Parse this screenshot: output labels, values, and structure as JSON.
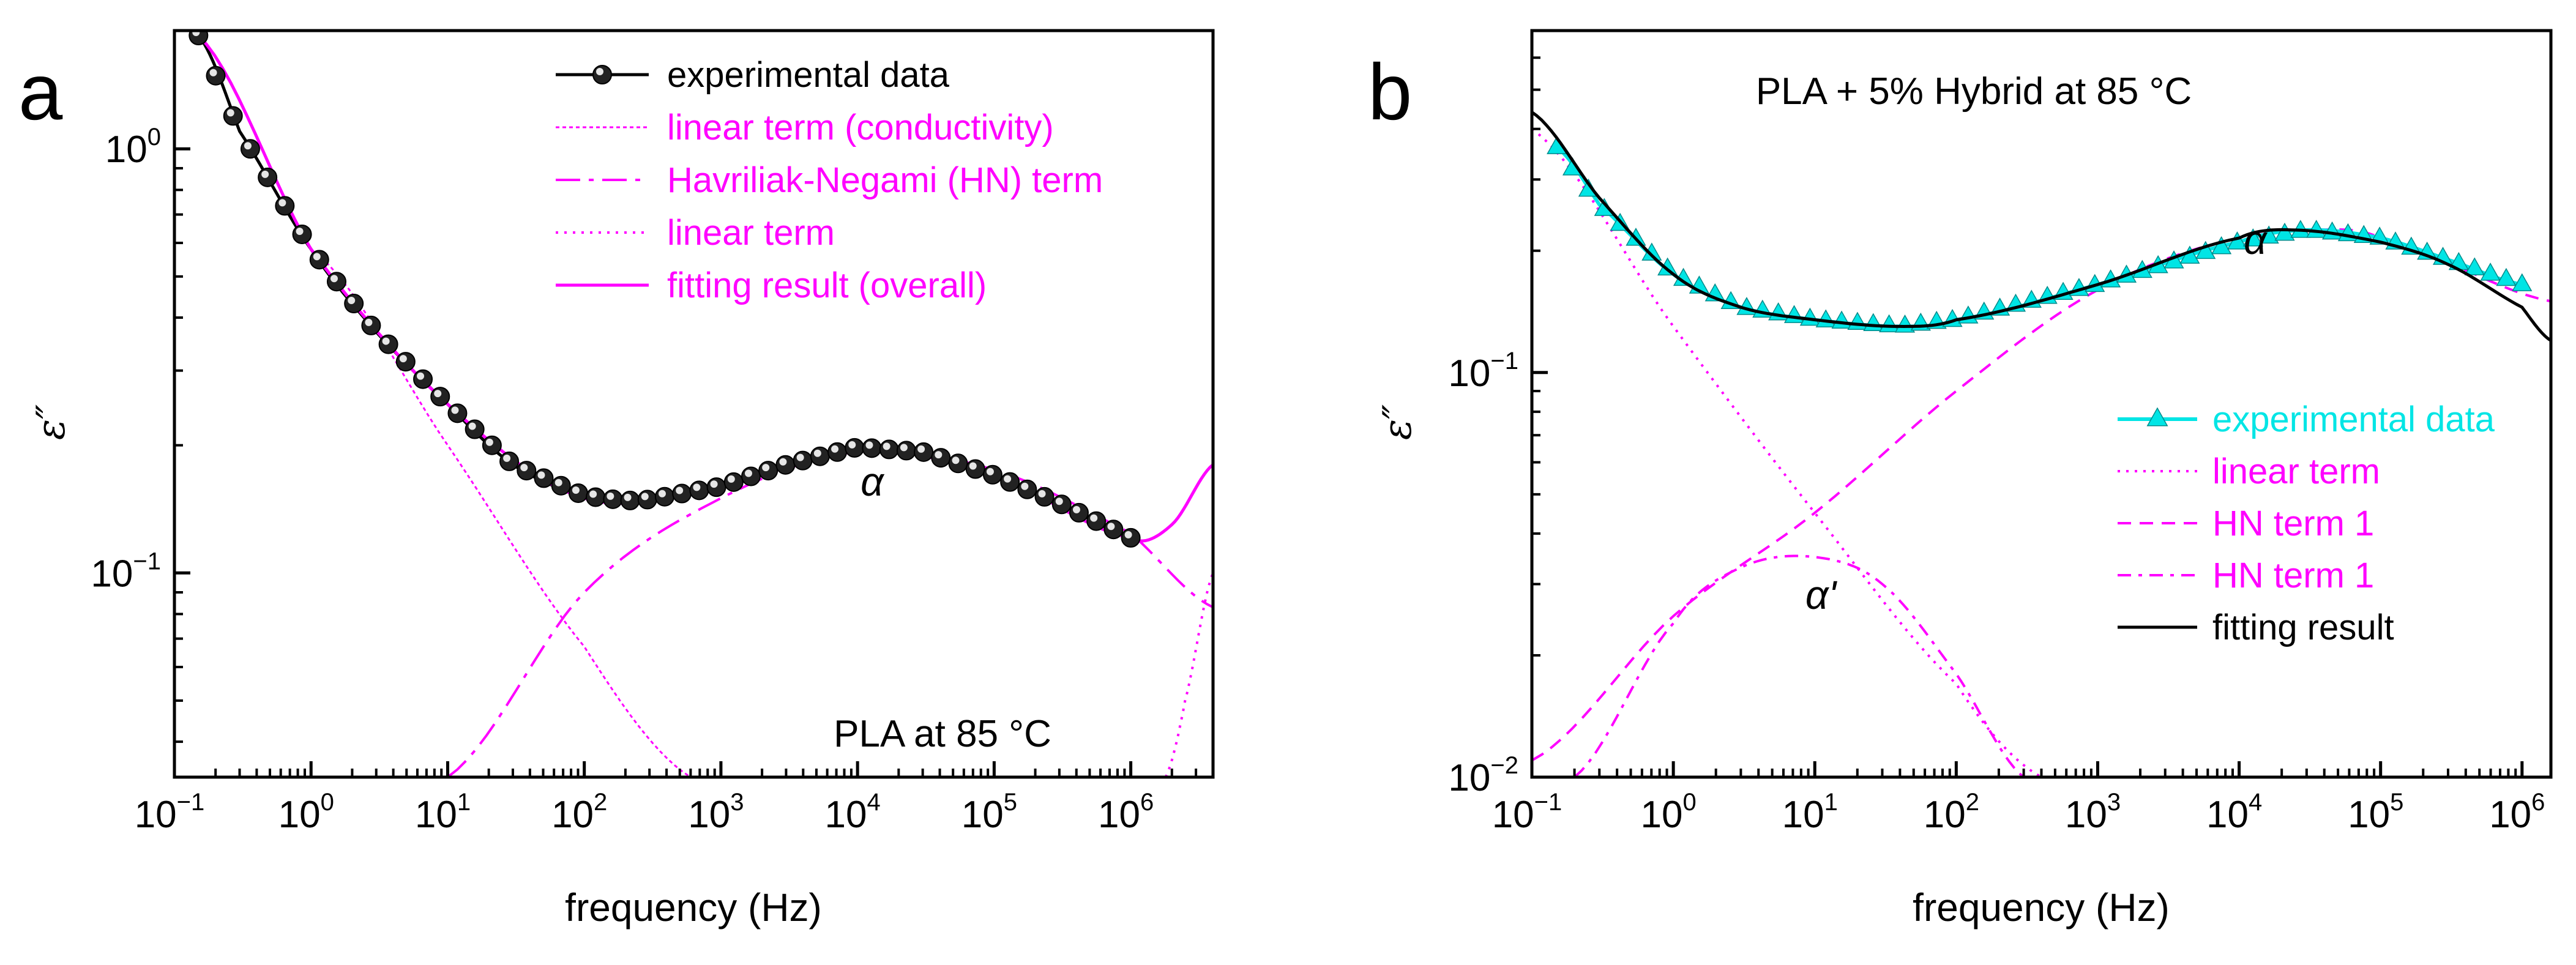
{
  "chart_data": [
    {
      "type": "line",
      "panel_label": "a",
      "xlabel": "frequency (Hz)",
      "ylabel": "ε″",
      "xscale": "log",
      "yscale": "log",
      "xlim": [
        0.1,
        4000000
      ],
      "ylim": [
        0.033,
        1.9
      ],
      "x_ticks": [
        "10^-1",
        "10^0",
        "10^1",
        "10^2",
        "10^3",
        "10^4",
        "10^5",
        "10^6"
      ],
      "y_ticks": [
        "10^-1",
        "10^0"
      ],
      "annotation": "PLA  at 85 °C",
      "peak_label": "α",
      "legend_position": "top-right",
      "legend": [
        {
          "label": "experimental data",
          "style": "black line with spheres"
        },
        {
          "label": "linear term (conductivity)",
          "style": "magenta short dash"
        },
        {
          "label": "Havriliak-Negami (HN) term",
          "style": "magenta dash-dot"
        },
        {
          "label": "linear term",
          "style": "magenta dotted"
        },
        {
          "label": "fitting result (overall)",
          "style": "magenta solid"
        }
      ],
      "series": [
        {
          "name": "experimental data",
          "x": [
            0.15,
            0.3,
            1,
            3,
            10,
            30,
            100,
            200,
            300,
            1000,
            3000,
            10000,
            30000,
            100000,
            300000,
            1000000
          ],
          "y": [
            1.85,
            1.1,
            0.58,
            0.37,
            0.25,
            0.18,
            0.152,
            0.148,
            0.149,
            0.16,
            0.18,
            0.198,
            0.193,
            0.17,
            0.146,
            0.121
          ]
        },
        {
          "name": "linear term (conductivity)",
          "x": [
            1,
            10,
            100,
            600
          ],
          "y": [
            0.58,
            0.2,
            0.067,
            0.033
          ]
        },
        {
          "name": "Havriliak-Negami (HN) term",
          "x": [
            10,
            100,
            1000,
            10000,
            100000,
            1000000,
            4000000
          ],
          "y": [
            0.033,
            0.09,
            0.15,
            0.193,
            0.175,
            0.124,
            0.083
          ]
        },
        {
          "name": "linear term",
          "x": [
            1800000,
            2500000,
            4000000
          ],
          "y": [
            0.033,
            0.05,
            0.1
          ]
        },
        {
          "name": "fitting result (overall)",
          "x": [
            0.15,
            1,
            10,
            100,
            1000,
            10000,
            100000,
            1000000,
            2000000,
            4000000
          ],
          "y": [
            1.85,
            0.58,
            0.25,
            0.15,
            0.16,
            0.195,
            0.17,
            0.121,
            0.13,
            0.18
          ]
        }
      ]
    },
    {
      "type": "line",
      "panel_label": "b",
      "xlabel": "frequency (Hz)",
      "ylabel": "ε″",
      "xscale": "log",
      "yscale": "log",
      "xlim": [
        0.1,
        1600000
      ],
      "ylim": [
        0.01,
        0.7
      ],
      "x_ticks": [
        "10^-1",
        "10^0",
        "10^1",
        "10^2",
        "10^3",
        "10^4",
        "10^5",
        "10^6"
      ],
      "y_ticks": [
        "10^-2",
        "10^-1"
      ],
      "annotation": "PLA + 5% Hybrid  at 85 °C",
      "peak_label": "α",
      "secondary_peak_label": "α'",
      "legend_position": "center-right",
      "legend": [
        {
          "label": "experimental data",
          "style": "cyan line with triangles"
        },
        {
          "label": "linear term",
          "style": "magenta dotted"
        },
        {
          "label": "HN term 1",
          "style": "magenta dashed"
        },
        {
          "label": "HN term 1",
          "style": "magenta dash-dot"
        },
        {
          "label": "fitting result",
          "style": "black solid"
        }
      ],
      "series": [
        {
          "name": "experimental data",
          "x": [
            0.15,
            0.3,
            1,
            3,
            10,
            40,
            100,
            1000,
            10000,
            30000,
            100000,
            300000,
            1000000
          ],
          "y": [
            0.36,
            0.26,
            0.175,
            0.145,
            0.135,
            0.13,
            0.135,
            0.165,
            0.21,
            0.225,
            0.215,
            0.19,
            0.165
          ]
        },
        {
          "name": "linear term",
          "x": [
            0.1,
            1,
            10,
            100,
            400
          ],
          "y": [
            0.4,
            0.13,
            0.045,
            0.017,
            0.01
          ]
        },
        {
          "name": "HN term 1 (α)",
          "x": [
            0.1,
            1,
            10,
            100,
            1000,
            10000,
            30000,
            100000,
            1600000
          ],
          "y": [
            0.011,
            0.025,
            0.045,
            0.09,
            0.16,
            0.215,
            0.225,
            0.215,
            0.15
          ]
        },
        {
          "name": "HN term 1 (α')",
          "x": [
            0.2,
            1,
            3,
            10,
            30,
            100,
            300
          ],
          "y": [
            0.01,
            0.024,
            0.033,
            0.035,
            0.03,
            0.018,
            0.01
          ]
        },
        {
          "name": "fitting result",
          "x": [
            0.1,
            0.3,
            1,
            3,
            10,
            40,
            100,
            1000,
            10000,
            25000,
            100000,
            300000,
            1000000,
            1600000
          ],
          "y": [
            0.44,
            0.27,
            0.175,
            0.145,
            0.135,
            0.13,
            0.135,
            0.165,
            0.215,
            0.225,
            0.21,
            0.185,
            0.145,
            0.12
          ]
        }
      ]
    }
  ]
}
